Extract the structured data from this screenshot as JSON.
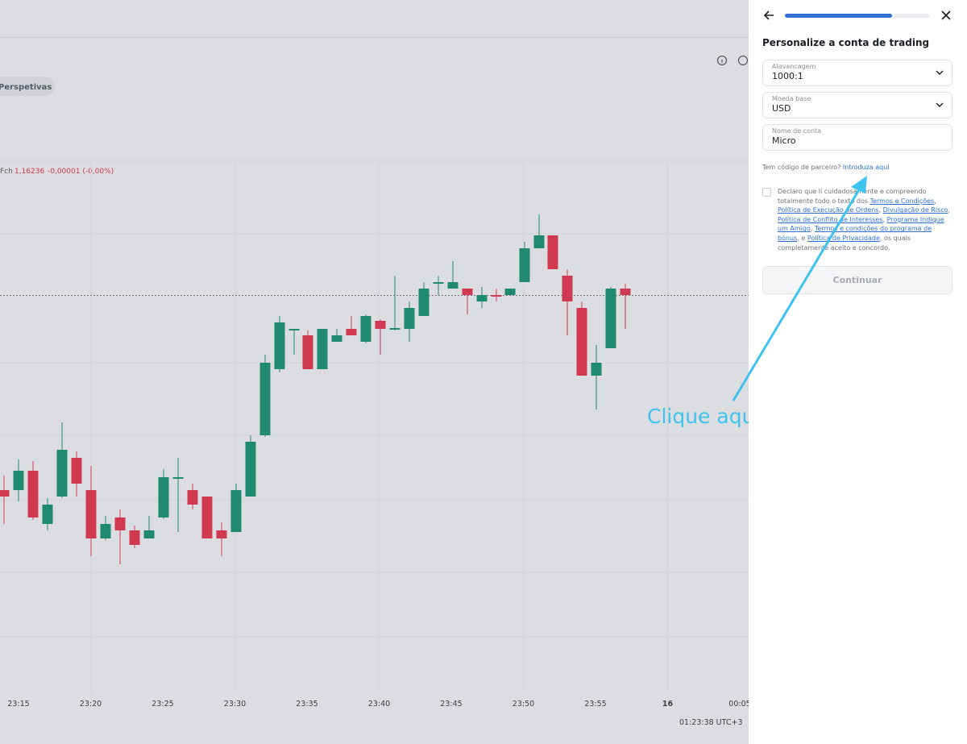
{
  "chart": {
    "tab": "Perspetivas",
    "legend": {
      "label": "Fch",
      "price": "1,16236",
      "change": "-0,00001 (-0,00%)"
    },
    "time_labels": [
      "23:15",
      "23:20",
      "23:25",
      "23:30",
      "23:35",
      "23:40",
      "23:45",
      "23:50",
      "23:55",
      "16",
      "00:05"
    ],
    "clock": "01:23:38 UTC+3",
    "annotation": "Clique aqui"
  },
  "panel": {
    "title": "Personalize a conta de trading",
    "fields": [
      {
        "label": "Alavancagem",
        "value": "1000:1",
        "dropdown": true
      },
      {
        "label": "Moeda base",
        "value": "USD",
        "dropdown": true
      },
      {
        "label": "Nome de conta",
        "value": "Micro",
        "dropdown": false
      }
    ],
    "partner": {
      "question": "Tem código de parceiro?",
      "link": "Introduza aqui"
    },
    "consent": [
      {
        "text": "Declaro que li cuidadosamente e compreendo totalmente todo o texto dos ",
        "link": false
      },
      {
        "text": "Termos e Condições",
        "link": true
      },
      {
        "text": ", ",
        "link": false
      },
      {
        "text": "Política de Execução de Ordens",
        "link": true
      },
      {
        "text": ", ",
        "link": false
      },
      {
        "text": "Divulgação de Risco",
        "link": true
      },
      {
        "text": ", ",
        "link": false
      },
      {
        "text": "Política de Conflito de Interesses",
        "link": true
      },
      {
        "text": ", ",
        "link": false
      },
      {
        "text": "Programa Indique um Amigo",
        "link": true
      },
      {
        "text": ", ",
        "link": false
      },
      {
        "text": "Termos e condições do programa de bónus",
        "link": true
      },
      {
        "text": ", e ",
        "link": false
      },
      {
        "text": "Política de Privacidade",
        "link": true
      },
      {
        "text": ", os quais completamente aceito e concordo.",
        "link": false
      }
    ],
    "button": "Continuar"
  }
}
